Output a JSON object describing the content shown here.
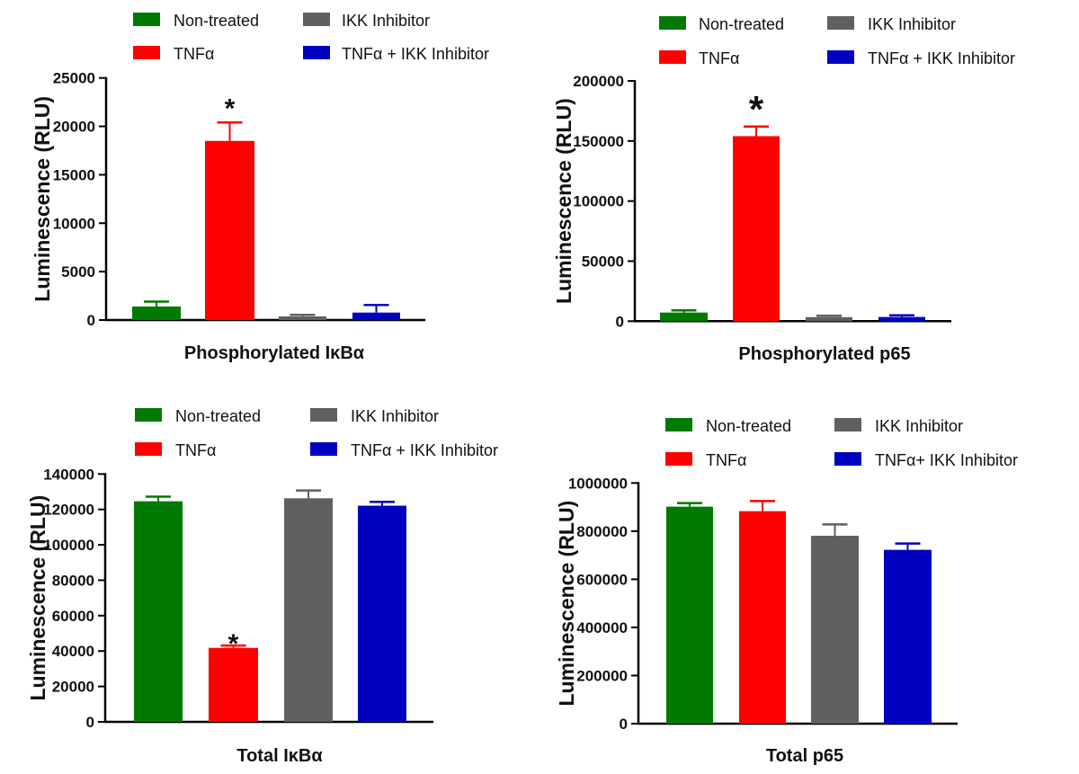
{
  "chart_data": [
    {
      "type": "bar",
      "title": "Phosphorylated IκBα",
      "xlabel": "",
      "ylabel": "Luminescence (RLU)",
      "ylim": [
        0,
        25000
      ],
      "yticks": [
        "0",
        "5000",
        "10000",
        "15000",
        "20000",
        "25000"
      ],
      "grid": false,
      "legend_position": "top",
      "categories": [
        "Non-treated",
        "TNFα",
        "IKK Inhibitor",
        "TNFα + IKK Inhibitor"
      ],
      "legend": [
        "Non-treated",
        "IKK Inhibitor",
        "TNFα",
        "TNFα + IKK Inhibitor"
      ],
      "values": [
        1400,
        18500,
        370,
        770
      ],
      "error_upper": [
        1900,
        20400,
        530,
        1550
      ],
      "significance": [
        "",
        "*",
        "",
        ""
      ]
    },
    {
      "type": "bar",
      "title": "Phosphorylated p65",
      "xlabel": "",
      "ylabel": "Luminescence (RLU)",
      "ylim": [
        0,
        200000
      ],
      "yticks": [
        "0",
        "50000",
        "100000",
        "150000",
        "200000"
      ],
      "grid": false,
      "legend_position": "top",
      "categories": [
        "Non-treated",
        "TNFα",
        "IKK Inhibitor",
        "TNFα + IKK Inhibitor"
      ],
      "legend": [
        "Non-treated",
        "IKK Inhibitor",
        "TNFα",
        "TNFα + IKK Inhibitor"
      ],
      "values": [
        7200,
        154000,
        3400,
        3500
      ],
      "error_upper": [
        9000,
        162000,
        4500,
        4900
      ],
      "significance": [
        "",
        "*",
        "",
        ""
      ]
    },
    {
      "type": "bar",
      "title": "Total IκBα",
      "xlabel": "",
      "ylabel": "Luminescence (RLU)",
      "ylim": [
        0,
        140000
      ],
      "yticks": [
        "0",
        "20000",
        "40000",
        "60000",
        "80000",
        "100000",
        "120000",
        "140000"
      ],
      "grid": false,
      "legend_position": "top",
      "categories": [
        "Non-treated",
        "TNFα",
        "IKK Inhibitor",
        "TNFα + IKK Inhibitor"
      ],
      "legend": [
        "Non-treated",
        "IKK Inhibitor",
        "TNFα",
        "TNFα + IKK Inhibitor"
      ],
      "values": [
        124600,
        41800,
        126300,
        122100
      ],
      "error_upper": [
        127200,
        43100,
        130700,
        124300
      ],
      "significance": [
        "",
        "*",
        "",
        ""
      ]
    },
    {
      "type": "bar",
      "title": "Total p65",
      "xlabel": "",
      "ylabel": "Luminescence (RLU)",
      "ylim": [
        0,
        1000000
      ],
      "yticks": [
        "0",
        "200000",
        "400000",
        "600000",
        "800000",
        "1000000"
      ],
      "grid": false,
      "legend_position": "top",
      "categories": [
        "Non-treated",
        "TNFα",
        "IKK Inhibitor",
        "TNFα+ IKK Inhibitor"
      ],
      "legend": [
        "Non-treated",
        "IKK Inhibitor",
        "TNFα",
        "TNFα+ IKK Inhibitor"
      ],
      "values": [
        901600,
        883000,
        780800,
        722300
      ],
      "error_upper": [
        916600,
        925000,
        828000,
        748400
      ],
      "significance": [
        "",
        "",
        "",
        ""
      ]
    }
  ],
  "colors": {
    "Non-treated": "#007A00",
    "TNFα": "#FF0000",
    "IKK Inhibitor": "#606060",
    "TNFα + IKK Inhibitor": "#0000C0"
  },
  "bar_colors": [
    "#007A00",
    "#FF0000",
    "#606060",
    "#0000C0"
  ],
  "legend_colors": [
    "#007A00",
    "#606060",
    "#FF0000",
    "#0000C0"
  ]
}
